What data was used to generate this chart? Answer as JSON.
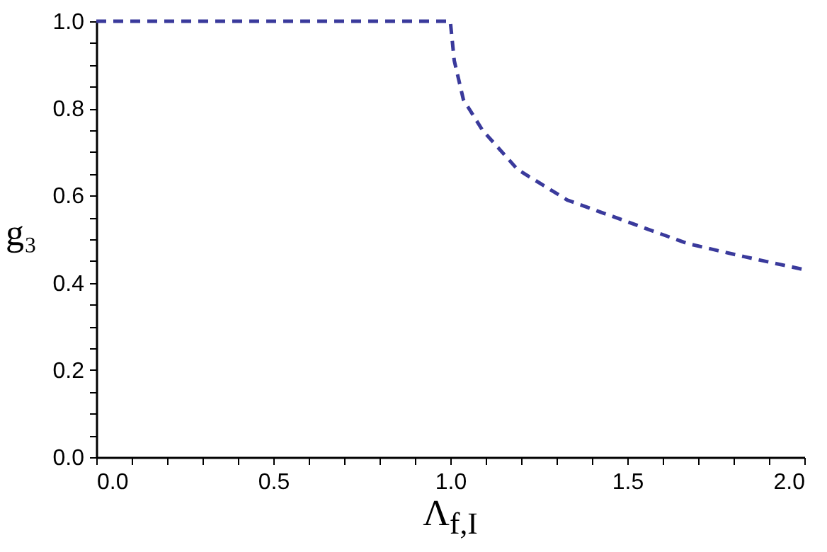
{
  "chart_data": {
    "type": "line",
    "xlabel": "Λ$_{f,I}$",
    "ylabel": "g₃",
    "series": [
      {
        "color": "#3a3a9c",
        "x": [
          0,
          0.5,
          1.0,
          1.011,
          1.037,
          1.091,
          1.19,
          1.33,
          1.5,
          1.67,
          1.83,
          2.0
        ],
        "values": [
          1.0,
          1.0,
          1.0,
          0.91,
          0.82,
          0.75,
          0.66,
          0.59,
          0.54,
          0.49,
          0.46,
          0.43
        ]
      }
    ],
    "line_style": "dashed",
    "marker": "none",
    "grid": false,
    "xlim": [
      0,
      2
    ],
    "ylim": [
      0,
      1
    ],
    "xticks": [
      {
        "value": 0,
        "label": "0.0"
      },
      {
        "value": 0.1,
        "label": null
      },
      {
        "value": 0.2,
        "label": null
      },
      {
        "value": 0.3,
        "label": null
      },
      {
        "value": 0.4,
        "label": null
      },
      {
        "value": 0.5,
        "label": "0.5"
      },
      {
        "value": 0.6,
        "label": null
      },
      {
        "value": 0.7,
        "label": null
      },
      {
        "value": 0.8,
        "label": null
      },
      {
        "value": 0.9,
        "label": null
      },
      {
        "value": 1,
        "label": "1.0"
      },
      {
        "value": 1.1,
        "label": null
      },
      {
        "value": 1.2,
        "label": null
      },
      {
        "value": 1.3,
        "label": null
      },
      {
        "value": 1.4,
        "label": null
      },
      {
        "value": 1.5,
        "label": "1.5"
      },
      {
        "value": 1.6,
        "label": null
      },
      {
        "value": 1.7,
        "label": null
      },
      {
        "value": 1.8,
        "label": null
      },
      {
        "value": 1.9,
        "label": null
      },
      {
        "value": 2,
        "label": "2.0"
      }
    ],
    "yticks": [
      {
        "value": 0,
        "label": "0.0"
      },
      {
        "value": 0.05,
        "label": null
      },
      {
        "value": 0.1,
        "label": null
      },
      {
        "value": 0.15,
        "label": null
      },
      {
        "value": 0.2,
        "label": "0.2"
      },
      {
        "value": 0.25,
        "label": null
      },
      {
        "value": 0.3,
        "label": null
      },
      {
        "value": 0.35,
        "label": null
      },
      {
        "value": 0.4,
        "label": "0.4"
      },
      {
        "value": 0.45,
        "label": null
      },
      {
        "value": 0.5,
        "label": null
      },
      {
        "value": 0.55,
        "label": null
      },
      {
        "value": 0.6,
        "label": "0.6"
      },
      {
        "value": 0.65,
        "label": null
      },
      {
        "value": 0.7,
        "label": null
      },
      {
        "value": 0.75,
        "label": null
      },
      {
        "value": 0.8,
        "label": "0.8"
      },
      {
        "value": 0.85,
        "label": null
      },
      {
        "value": 0.9,
        "label": null
      },
      {
        "value": 0.95,
        "label": null
      },
      {
        "value": 1,
        "label": "1.0"
      }
    ]
  }
}
